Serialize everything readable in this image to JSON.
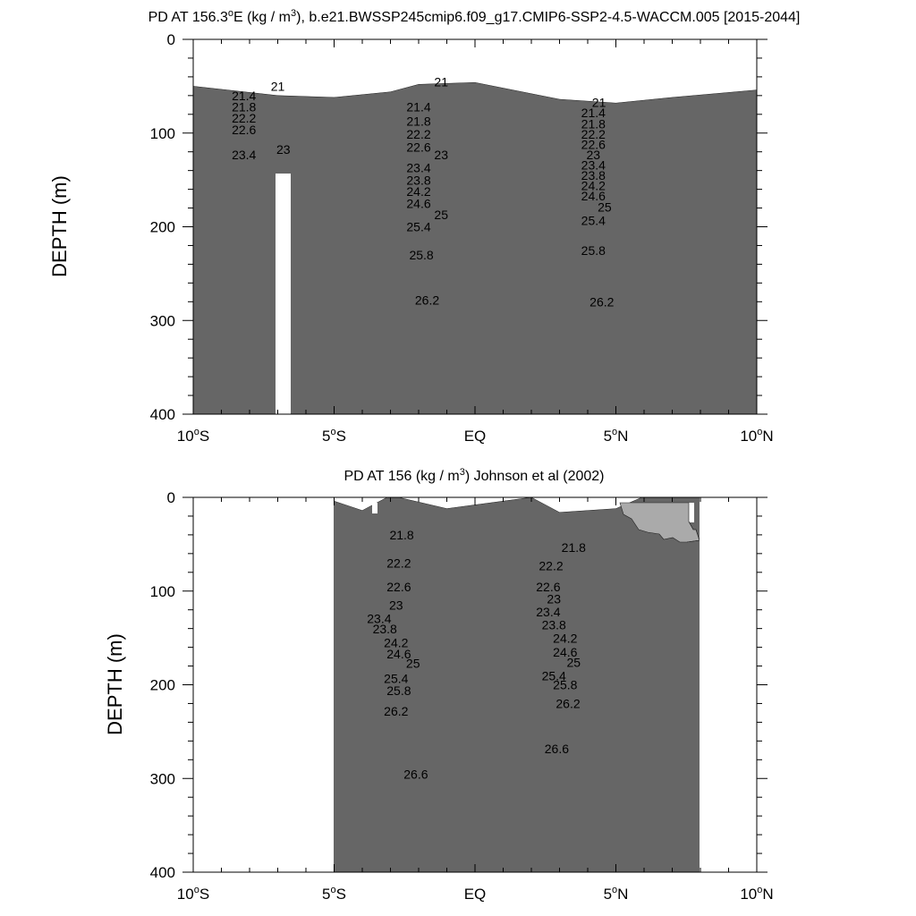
{
  "chart_data": [
    {
      "type": "contour",
      "title_prefix": "PD AT 156.3",
      "title_unit_sup": "o",
      "title_mid": "E (kg / m",
      "title_pow": "3",
      "title_suffix": "), b.e21.BWSSP245cmip6.f09_g17.CMIP6-SSP2-4.5-WACCM.005 [2015-2044]",
      "ylabel": "DEPTH (m)",
      "xlim": [
        -10,
        10
      ],
      "ylim": [
        0,
        400
      ],
      "y_reversed": true,
      "x_ticks": [
        {
          "v": -10,
          "n": "10",
          "s": "o",
          "h": "S"
        },
        {
          "v": -5,
          "n": "5",
          "s": "o",
          "h": "S"
        },
        {
          "v": 0,
          "n": "EQ",
          "s": "",
          "h": ""
        },
        {
          "v": 5,
          "n": "5",
          "s": "o",
          "h": "N"
        },
        {
          "v": 10,
          "n": "10",
          "s": "o",
          "h": "N"
        }
      ],
      "y_ticks": [
        "0",
        "100",
        "200",
        "300",
        "400"
      ],
      "contour_labels": [
        {
          "x": -7.0,
          "y": 55,
          "t": "21"
        },
        {
          "x": -1.2,
          "y": 50,
          "t": "21"
        },
        {
          "x": 4.4,
          "y": 72,
          "t": "21"
        },
        {
          "x": -8.2,
          "y": 65,
          "t": "21.4"
        },
        {
          "x": -2.0,
          "y": 77,
          "t": "21.4"
        },
        {
          "x": 4.2,
          "y": 83,
          "t": "21.4"
        },
        {
          "x": -8.2,
          "y": 77,
          "t": "21.8"
        },
        {
          "x": -2.0,
          "y": 92,
          "t": "21.8"
        },
        {
          "x": 4.2,
          "y": 95,
          "t": "21.8"
        },
        {
          "x": -8.2,
          "y": 89,
          "t": "22.2"
        },
        {
          "x": -2.0,
          "y": 106,
          "t": "22.2"
        },
        {
          "x": 4.2,
          "y": 106,
          "t": "22.2"
        },
        {
          "x": -8.2,
          "y": 101,
          "t": "22.6"
        },
        {
          "x": -2.0,
          "y": 120,
          "t": "22.6"
        },
        {
          "x": 4.2,
          "y": 117,
          "t": "22.6"
        },
        {
          "x": -6.8,
          "y": 122,
          "t": "23"
        },
        {
          "x": -1.2,
          "y": 128,
          "t": "23"
        },
        {
          "x": 4.2,
          "y": 128,
          "t": "23"
        },
        {
          "x": -8.2,
          "y": 128,
          "t": "23.4"
        },
        {
          "x": -2.0,
          "y": 142,
          "t": "23.4"
        },
        {
          "x": 4.2,
          "y": 139,
          "t": "23.4"
        },
        {
          "x": -2.0,
          "y": 155,
          "t": "23.8"
        },
        {
          "x": 4.2,
          "y": 150,
          "t": "23.8"
        },
        {
          "x": -2.0,
          "y": 167,
          "t": "24.2"
        },
        {
          "x": 4.2,
          "y": 161,
          "t": "24.2"
        },
        {
          "x": -2.0,
          "y": 180,
          "t": "24.6"
        },
        {
          "x": 4.2,
          "y": 172,
          "t": "24.6"
        },
        {
          "x": -1.2,
          "y": 192,
          "t": "25"
        },
        {
          "x": 4.6,
          "y": 184,
          "t": "25"
        },
        {
          "x": -2.0,
          "y": 205,
          "t": "25.4"
        },
        {
          "x": 4.2,
          "y": 198,
          "t": "25.4"
        },
        {
          "x": -1.9,
          "y": 235,
          "t": "25.8"
        },
        {
          "x": 4.2,
          "y": 230,
          "t": "25.8"
        },
        {
          "x": -1.7,
          "y": 283,
          "t": "26.2"
        },
        {
          "x": 4.5,
          "y": 285,
          "t": "26.2"
        }
      ]
    },
    {
      "type": "contour",
      "title_prefix": "PD AT 156 (kg / m",
      "title_pow": "3",
      "title_suffix": ") Johnson et al (2002)",
      "ylabel": "DEPTH (m)",
      "xlim": [
        -10,
        10
      ],
      "ylim": [
        0,
        400
      ],
      "y_reversed": true,
      "x_ticks": [
        {
          "v": -10,
          "n": "10",
          "s": "o",
          "h": "S"
        },
        {
          "v": -5,
          "n": "5",
          "s": "o",
          "h": "S"
        },
        {
          "v": 0,
          "n": "EQ",
          "s": "",
          "h": ""
        },
        {
          "v": 5,
          "n": "5",
          "s": "o",
          "h": "N"
        },
        {
          "v": 10,
          "n": "10",
          "s": "o",
          "h": "N"
        }
      ],
      "y_ticks": [
        "0",
        "100",
        "200",
        "300",
        "400"
      ],
      "contour_labels": [
        {
          "x": -2.6,
          "y": 45,
          "t": "21.8"
        },
        {
          "x": 3.5,
          "y": 58,
          "t": "21.8"
        },
        {
          "x": -2.7,
          "y": 75,
          "t": "22.2"
        },
        {
          "x": 2.7,
          "y": 78,
          "t": "22.2"
        },
        {
          "x": -2.7,
          "y": 100,
          "t": "22.6"
        },
        {
          "x": 2.6,
          "y": 100,
          "t": "22.6"
        },
        {
          "x": -2.8,
          "y": 120,
          "t": "23"
        },
        {
          "x": 2.8,
          "y": 113,
          "t": "23"
        },
        {
          "x": -3.4,
          "y": 134,
          "t": "23.4"
        },
        {
          "x": 2.6,
          "y": 127,
          "t": "23.4"
        },
        {
          "x": -3.2,
          "y": 145,
          "t": "23.8"
        },
        {
          "x": 2.8,
          "y": 141,
          "t": "23.8"
        },
        {
          "x": -2.8,
          "y": 160,
          "t": "24.2"
        },
        {
          "x": 3.2,
          "y": 155,
          "t": "24.2"
        },
        {
          "x": -2.7,
          "y": 172,
          "t": "24.6"
        },
        {
          "x": 3.2,
          "y": 170,
          "t": "24.6"
        },
        {
          "x": -2.2,
          "y": 182,
          "t": "25"
        },
        {
          "x": 3.5,
          "y": 181,
          "t": "25"
        },
        {
          "x": -2.8,
          "y": 198,
          "t": "25.4"
        },
        {
          "x": 2.8,
          "y": 195,
          "t": "25.4"
        },
        {
          "x": -2.7,
          "y": 211,
          "t": "25.8"
        },
        {
          "x": 3.2,
          "y": 205,
          "t": "25.8"
        },
        {
          "x": -2.8,
          "y": 233,
          "t": "26.2"
        },
        {
          "x": 3.3,
          "y": 225,
          "t": "26.2"
        },
        {
          "x": -2.1,
          "y": 300,
          "t": "26.6"
        },
        {
          "x": 2.9,
          "y": 273,
          "t": "26.6"
        }
      ]
    }
  ]
}
